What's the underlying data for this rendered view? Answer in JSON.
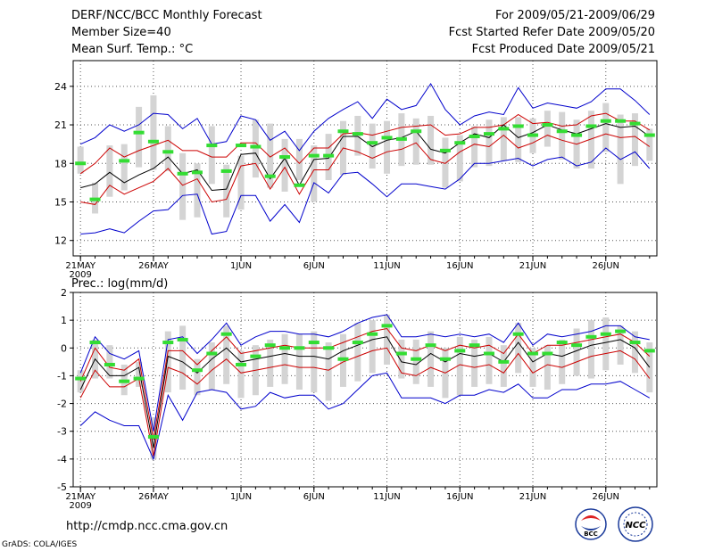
{
  "header": {
    "title": "DERF/NCC/BCC Monthly Forecast",
    "member_size": "Member Size=40",
    "variable_line": "Mean Surf. Temp.: °C",
    "period": "For 2009/05/21-2009/06/29",
    "fcst_started": "Fcst Started Refer Date 2009/05/20",
    "fcst_produced": "Fcst Produced Date 2009/05/21"
  },
  "footer": {
    "url": "http://cmdp.ncc.cma.gov.cn",
    "credit": "GrADS: COLA/IGES",
    "logo_bcc_text": "BCC",
    "logo_ncc_text": "NCC"
  },
  "colors": {
    "envelope": "#0000cc",
    "spread": "#cc0000",
    "mean": "#000000",
    "box": "#d4d4d4",
    "obs": "#33dd33"
  },
  "chart_data": [
    {
      "type": "line",
      "title": "Mean Surf. Temp.: °C",
      "xlabel": "",
      "ylabel": "°C",
      "ylim": [
        10.8,
        26
      ],
      "yticks": [
        12,
        15,
        18,
        21,
        24
      ],
      "xticks": [
        {
          "day": 1,
          "label": "21MAY",
          "sub": "2009"
        },
        {
          "day": 6,
          "label": "26MAY",
          "sub": ""
        },
        {
          "day": 12,
          "label": "1JUN",
          "sub": ""
        },
        {
          "day": 17,
          "label": "6JUN",
          "sub": ""
        },
        {
          "day": 22,
          "label": "11JUN",
          "sub": ""
        },
        {
          "day": 27,
          "label": "16JUN",
          "sub": ""
        },
        {
          "day": 32,
          "label": "21JUN",
          "sub": ""
        },
        {
          "day": 37,
          "label": "26JUN",
          "sub": ""
        }
      ],
      "xrange": [
        0.5,
        40.5
      ],
      "grid": true,
      "days": [
        1,
        2,
        3,
        4,
        5,
        6,
        7,
        8,
        9,
        10,
        11,
        12,
        13,
        14,
        15,
        16,
        17,
        18,
        19,
        20,
        21,
        22,
        23,
        24,
        25,
        26,
        27,
        28,
        29,
        30,
        31,
        32,
        33,
        34,
        35,
        36,
        37,
        38,
        39,
        40
      ],
      "series": [
        {
          "name": "ensemble max",
          "values": [
            19.5,
            20.0,
            21.0,
            20.5,
            21.0,
            21.9,
            21.8,
            20.7,
            21.5,
            19.5,
            19.7,
            21.7,
            21.4,
            19.8,
            20.5,
            19.0,
            20.5,
            21.5,
            22.2,
            22.8,
            21.5,
            23.0,
            22.2,
            22.5,
            24.2,
            22.2,
            21.0,
            21.7,
            22.0,
            21.8,
            23.9,
            22.3,
            22.7,
            22.5,
            22.3,
            22.8,
            23.8,
            23.8,
            22.9,
            21.8
          ]
        },
        {
          "name": "spread upper",
          "values": [
            17.2,
            18.0,
            19.2,
            18.5,
            19.0,
            19.4,
            19.8,
            19.0,
            19.0,
            18.5,
            18.5,
            19.6,
            19.6,
            18.5,
            19.2,
            18.0,
            19.2,
            19.2,
            20.3,
            20.4,
            20.2,
            20.5,
            20.8,
            20.9,
            21.0,
            20.2,
            20.3,
            20.8,
            20.8,
            21.0,
            21.8,
            21.1,
            21.2,
            20.9,
            21.0,
            21.7,
            21.9,
            21.3,
            21.3,
            20.6
          ]
        },
        {
          "name": "ensemble mean",
          "values": [
            16.1,
            16.4,
            17.3,
            16.5,
            17.1,
            17.6,
            18.5,
            17.2,
            17.5,
            15.9,
            16.0,
            18.7,
            18.8,
            16.8,
            18.4,
            16.3,
            18.3,
            18.4,
            20.1,
            20.1,
            19.3,
            19.8,
            20.0,
            20.5,
            19.1,
            18.8,
            19.6,
            20.3,
            20.0,
            21.0,
            20.0,
            20.4,
            21.0,
            20.6,
            20.3,
            20.7,
            21.1,
            20.8,
            20.9,
            20.1
          ]
        },
        {
          "name": "spread lower",
          "values": [
            15.0,
            14.8,
            16.3,
            15.6,
            16.1,
            16.6,
            17.6,
            16.3,
            16.8,
            15.0,
            15.2,
            17.8,
            18.0,
            16.0,
            17.7,
            15.6,
            17.5,
            17.5,
            19.2,
            18.9,
            18.4,
            18.9,
            19.1,
            19.6,
            18.3,
            18.0,
            18.9,
            19.5,
            19.3,
            20.2,
            19.2,
            19.6,
            20.2,
            19.8,
            19.5,
            19.9,
            20.3,
            20.0,
            20.1,
            19.3
          ]
        },
        {
          "name": "ensemble min",
          "values": [
            12.5,
            12.6,
            12.9,
            12.6,
            13.5,
            14.3,
            14.4,
            15.5,
            15.6,
            12.5,
            12.7,
            15.5,
            15.5,
            13.5,
            14.8,
            13.4,
            16.5,
            15.7,
            17.2,
            17.3,
            16.4,
            15.4,
            16.4,
            16.4,
            16.2,
            16.0,
            16.8,
            18.0,
            18.0,
            18.2,
            18.4,
            17.8,
            18.3,
            18.5,
            17.8,
            18.1,
            19.2,
            18.3,
            18.9,
            17.6
          ]
        }
      ],
      "boxes": [
        {
          "low": 17.2,
          "high": 19.3
        },
        {
          "low": 14.1,
          "high": 16.5
        },
        {
          "low": 15.4,
          "high": 19.4
        },
        {
          "low": 15.9,
          "high": 19.5
        },
        {
          "low": 17.7,
          "high": 22.4
        },
        {
          "low": 17.5,
          "high": 23.3
        },
        {
          "low": 17.4,
          "high": 20.9
        },
        {
          "low": 13.6,
          "high": 18.8
        },
        {
          "low": 13.8,
          "high": 18.0
        },
        {
          "low": 16.4,
          "high": 20.9
        },
        {
          "low": 13.8,
          "high": 17.9
        },
        {
          "low": 14.4,
          "high": 18.6
        },
        {
          "low": 16.9,
          "high": 21.4
        },
        {
          "low": 16.1,
          "high": 21.1
        },
        {
          "low": 15.8,
          "high": 19.9
        },
        {
          "low": 16.7,
          "high": 19.9
        },
        {
          "low": 15.0,
          "high": 19.4
        },
        {
          "low": 16.7,
          "high": 20.3
        },
        {
          "low": 17.1,
          "high": 21.3
        },
        {
          "low": 18.6,
          "high": 21.7
        },
        {
          "low": 17.6,
          "high": 21.1
        },
        {
          "low": 17.2,
          "high": 21.3
        },
        {
          "low": 17.8,
          "high": 21.9
        },
        {
          "low": 17.9,
          "high": 21.5
        },
        {
          "low": 17.9,
          "high": 21.7
        },
        {
          "low": 16.1,
          "high": 20.0
        },
        {
          "low": 16.6,
          "high": 20.2
        },
        {
          "low": 17.7,
          "high": 20.9
        },
        {
          "low": 17.8,
          "high": 21.4
        },
        {
          "low": 18.2,
          "high": 21.6
        },
        {
          "low": 18.1,
          "high": 21.6
        },
        {
          "low": 18.8,
          "high": 21.5
        },
        {
          "low": 19.3,
          "high": 22.1
        },
        {
          "low": 18.3,
          "high": 22.0
        },
        {
          "low": 17.6,
          "high": 21.4
        },
        {
          "low": 17.6,
          "high": 22.1
        },
        {
          "low": 18.9,
          "high": 22.7
        },
        {
          "low": 16.4,
          "high": 21.8
        },
        {
          "low": 17.8,
          "high": 21.9
        },
        {
          "low": 18.2,
          "high": 20.7
        }
      ],
      "observed": [
        18.0,
        15.2,
        null,
        18.2,
        20.4,
        19.7,
        18.9,
        17.2,
        17.3,
        19.4,
        17.4,
        19.4,
        19.3,
        17.0,
        18.5,
        16.3,
        18.6,
        18.6,
        20.5,
        20.3,
        19.6,
        20.0,
        19.9,
        20.5,
        null,
        19.0,
        19.6,
        20.1,
        20.3,
        20.7,
        20.9,
        20.2,
        21.0,
        20.5,
        20.2,
        20.9,
        21.3,
        21.3,
        21.1,
        20.2
      ]
    },
    {
      "type": "line",
      "title": "Prec.: log(mm/d)",
      "xlabel": "",
      "ylabel": "log(mm/d)",
      "ylim": [
        -5,
        2
      ],
      "yticks": [
        -5,
        -4,
        -3,
        -2,
        -1,
        0,
        1,
        2
      ],
      "xticks": [
        {
          "day": 1,
          "label": "21MAY",
          "sub": "2009"
        },
        {
          "day": 6,
          "label": "26MAY",
          "sub": ""
        },
        {
          "day": 12,
          "label": "1JUN",
          "sub": ""
        },
        {
          "day": 17,
          "label": "6JUN",
          "sub": ""
        },
        {
          "day": 22,
          "label": "11JUN",
          "sub": ""
        },
        {
          "day": 27,
          "label": "16JUN",
          "sub": ""
        },
        {
          "day": 32,
          "label": "21JUN",
          "sub": ""
        },
        {
          "day": 37,
          "label": "26JUN",
          "sub": ""
        }
      ],
      "xrange": [
        0.5,
        40.5
      ],
      "grid": true,
      "days": [
        1,
        2,
        3,
        4,
        5,
        6,
        7,
        8,
        9,
        10,
        11,
        12,
        13,
        14,
        15,
        16,
        17,
        18,
        19,
        20,
        21,
        22,
        23,
        24,
        25,
        26,
        27,
        28,
        29,
        30,
        31,
        32,
        33,
        34,
        35,
        36,
        37,
        38,
        39,
        40
      ],
      "series": [
        {
          "name": "ensemble max",
          "values": [
            -0.9,
            0.4,
            -0.2,
            -0.4,
            -0.1,
            -3.0,
            0.3,
            0.4,
            -0.2,
            0.3,
            0.9,
            0.1,
            0.4,
            0.6,
            0.6,
            0.5,
            0.5,
            0.4,
            0.6,
            0.9,
            1.1,
            1.2,
            0.4,
            0.4,
            0.5,
            0.4,
            0.5,
            0.4,
            0.5,
            0.2,
            0.9,
            0.1,
            0.5,
            0.4,
            0.5,
            0.6,
            0.8,
            0.8,
            0.4,
            0.3
          ]
        },
        {
          "name": "spread upper",
          "values": [
            -1.2,
            0.0,
            -0.7,
            -0.8,
            -0.4,
            -3.3,
            -0.1,
            -0.1,
            -0.6,
            -0.1,
            0.4,
            -0.2,
            -0.1,
            0.0,
            0.1,
            0.0,
            0.0,
            0.0,
            0.2,
            0.4,
            0.6,
            0.7,
            0.0,
            -0.1,
            0.1,
            -0.1,
            0.1,
            0.0,
            0.1,
            -0.2,
            0.5,
            -0.2,
            0.1,
            0.1,
            0.2,
            0.3,
            0.4,
            0.5,
            0.2,
            -0.3
          ]
        },
        {
          "name": "ensemble mean",
          "values": [
            -1.5,
            -0.4,
            -1.0,
            -1.0,
            -0.7,
            -3.6,
            -0.3,
            -0.5,
            -0.9,
            -0.4,
            0.0,
            -0.5,
            -0.4,
            -0.3,
            -0.2,
            -0.3,
            -0.3,
            -0.4,
            -0.1,
            0.1,
            0.3,
            0.4,
            -0.5,
            -0.6,
            -0.2,
            -0.5,
            -0.2,
            -0.3,
            -0.2,
            -0.5,
            0.2,
            -0.5,
            -0.2,
            -0.3,
            -0.1,
            0.1,
            0.2,
            0.3,
            0.0,
            -0.7
          ]
        },
        {
          "name": "spread lower",
          "values": [
            -1.8,
            -0.8,
            -1.4,
            -1.4,
            -1.1,
            -3.9,
            -0.7,
            -0.9,
            -1.3,
            -0.8,
            -0.4,
            -0.9,
            -0.8,
            -0.7,
            -0.6,
            -0.7,
            -0.7,
            -0.8,
            -0.5,
            -0.3,
            -0.1,
            0.0,
            -0.9,
            -1.0,
            -0.7,
            -0.9,
            -0.6,
            -0.7,
            -0.6,
            -0.9,
            -0.2,
            -0.9,
            -0.6,
            -0.7,
            -0.5,
            -0.3,
            -0.2,
            -0.1,
            -0.4,
            -1.1
          ]
        },
        {
          "name": "ensemble min",
          "values": [
            -2.8,
            -2.3,
            -2.6,
            -2.8,
            -2.8,
            -4.0,
            -1.7,
            -2.6,
            -1.6,
            -1.5,
            -1.6,
            -2.2,
            -2.1,
            -1.6,
            -1.8,
            -1.7,
            -1.7,
            -2.2,
            -2.0,
            -1.5,
            -1.0,
            -0.9,
            -1.8,
            -1.8,
            -1.8,
            -2.0,
            -1.7,
            -1.7,
            -1.5,
            -1.6,
            -1.3,
            -1.8,
            -1.8,
            -1.5,
            -1.5,
            -1.3,
            -1.3,
            -1.2,
            -1.5,
            -1.8
          ]
        },
        {
          "name": "observed",
          "values": [
            -1.1,
            0.2,
            -0.6,
            -1.2,
            -1.1,
            -3.2,
            0.2,
            0.3,
            -0.8,
            -0.2,
            0.5,
            -0.6,
            -0.3,
            0.1,
            0.0,
            0.0,
            0.2,
            0.0,
            -0.4,
            0.2,
            0.5,
            0.8,
            -0.2,
            -0.4,
            0.1,
            -0.4,
            -0.1,
            0.1,
            -0.2,
            -0.5,
            0.5,
            -0.2,
            -0.2,
            0.2,
            0.1,
            0.4,
            0.5,
            0.6,
            0.2,
            -0.1
          ]
        }
      ],
      "boxes": [
        {
          "low": -1.6,
          "high": -0.8
        },
        {
          "low": -1.1,
          "high": 0.3
        },
        {
          "low": -1.1,
          "high": 0.1
        },
        {
          "low": -1.7,
          "high": -0.6
        },
        {
          "low": -1.4,
          "high": -0.5
        },
        {
          "low": -4.0,
          "high": -2.5
        },
        {
          "low": -1.6,
          "high": 0.6
        },
        {
          "low": -1.5,
          "high": 0.8
        },
        {
          "low": -1.7,
          "high": -0.4
        },
        {
          "low": -1.5,
          "high": 0.2
        },
        {
          "low": -1.3,
          "high": 0.8
        },
        {
          "low": -1.8,
          "high": -0.1
        },
        {
          "low": -1.7,
          "high": 0.1
        },
        {
          "low": -1.4,
          "high": 0.3
        },
        {
          "low": -1.3,
          "high": 0.5
        },
        {
          "low": -1.5,
          "high": 0.5
        },
        {
          "low": -1.6,
          "high": 0.6
        },
        {
          "low": -1.9,
          "high": 0.2
        },
        {
          "low": -1.4,
          "high": 0.5
        },
        {
          "low": -1.2,
          "high": 0.9
        },
        {
          "low": -0.9,
          "high": 1.0
        },
        {
          "low": -0.6,
          "high": 1.2
        },
        {
          "low": -1.1,
          "high": 0.3
        },
        {
          "low": -1.3,
          "high": 0.3
        },
        {
          "low": -1.4,
          "high": 0.6
        },
        {
          "low": -1.8,
          "high": 0.0
        },
        {
          "low": -1.7,
          "high": 0.4
        },
        {
          "low": -1.4,
          "high": 0.3
        },
        {
          "low": -1.3,
          "high": 0.4
        },
        {
          "low": -1.4,
          "high": 0.1
        },
        {
          "low": -0.9,
          "high": 0.9
        },
        {
          "low": -1.4,
          "high": 0.0
        },
        {
          "low": -1.5,
          "high": 0.1
        },
        {
          "low": -1.3,
          "high": 0.3
        },
        {
          "low": -1.0,
          "high": 0.7
        },
        {
          "low": -1.1,
          "high": 1.0
        },
        {
          "low": -0.8,
          "high": 1.1
        },
        {
          "low": -0.6,
          "high": 0.8
        },
        {
          "low": -0.9,
          "high": 0.6
        },
        {
          "low": -1.6,
          "high": 0.2
        }
      ]
    }
  ]
}
